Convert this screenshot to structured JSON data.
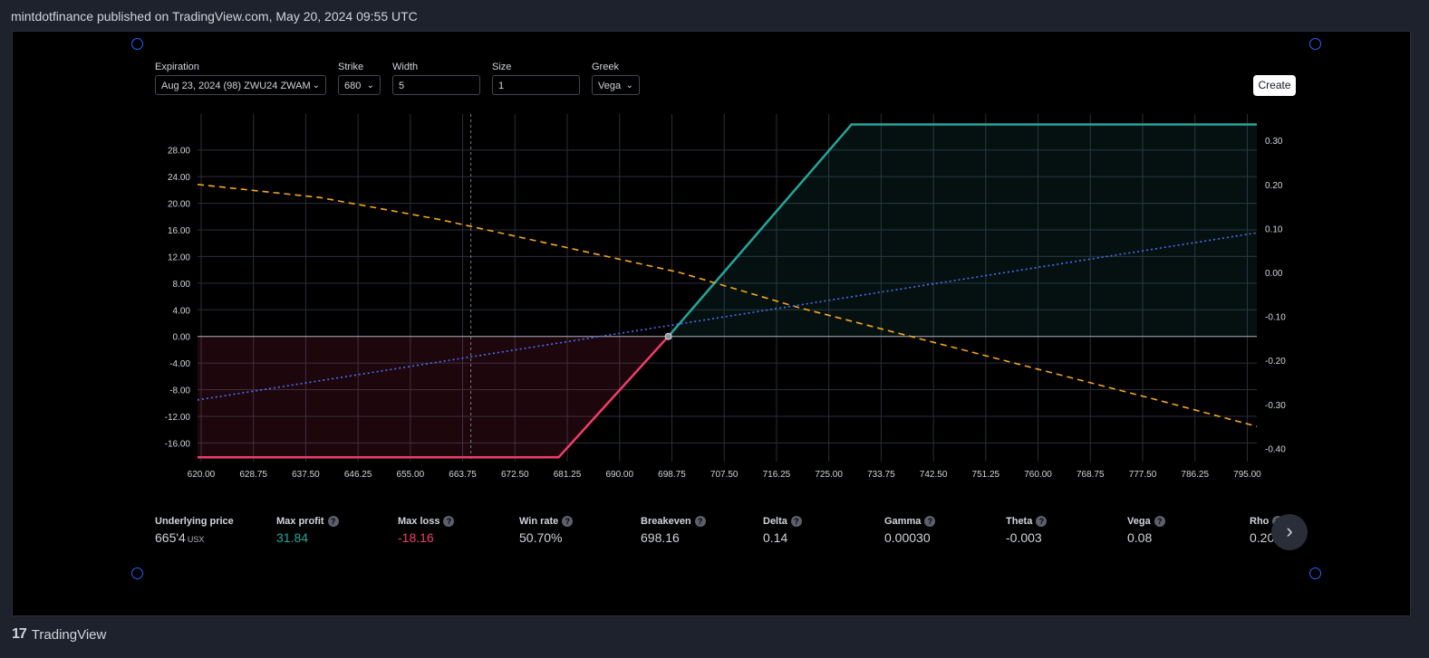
{
  "header": {
    "published": "mintdotfinance published on TradingView.com, May 20, 2024 09:55 UTC"
  },
  "controls": {
    "expiration": {
      "label": "Expiration",
      "value": "Aug 23, 2024 (98) ZWU24 ZWAM"
    },
    "strike": {
      "label": "Strike",
      "value": "680"
    },
    "width": {
      "label": "Width",
      "value": "5"
    },
    "size": {
      "label": "Size",
      "value": "1"
    },
    "greek": {
      "label": "Greek",
      "value": "Vega"
    },
    "create_label": "Create"
  },
  "chart_data": {
    "type": "line",
    "x_ticks": [
      "620.00",
      "628.75",
      "637.50",
      "646.25",
      "655.00",
      "663.75",
      "672.50",
      "681.25",
      "690.00",
      "698.75",
      "707.50",
      "716.25",
      "725.00",
      "733.75",
      "742.50",
      "751.25",
      "760.00",
      "768.75",
      "777.50",
      "786.25",
      "795.00"
    ],
    "y_left_ticks": [
      "28.00",
      "24.00",
      "20.00",
      "16.00",
      "12.00",
      "8.00",
      "4.00",
      "0.00",
      "-4.00",
      "-8.00",
      "-12.00",
      "-16.00"
    ],
    "y_right_ticks": [
      "0.30",
      "0.20",
      "0.10",
      "0.00",
      "-0.10",
      "-0.20",
      "-0.30",
      "-0.40"
    ],
    "xlim": [
      619.4,
      796.6
    ],
    "ylim_left": [
      -18.8,
      33.4
    ],
    "ylim_right": [
      -0.43,
      0.36
    ],
    "current_price": 665.125,
    "breakeven": 698.16,
    "series": [
      {
        "role": "pnl",
        "color_profit": "#26a69a",
        "color_loss": "#f23c6b",
        "x": [
          619.4,
          679.8,
          698.16,
          728.8,
          796.6
        ],
        "y": [
          -18.16,
          -18.16,
          0,
          31.84,
          31.84
        ]
      },
      {
        "role": "theta",
        "color": "#f5a623",
        "x": [
          619.4,
          640,
          660,
          680,
          700,
          720,
          740,
          760,
          780,
          796.6
        ],
        "y": [
          0.2,
          0.17,
          0.12,
          0.06,
          0.0,
          -0.08,
          -0.15,
          -0.22,
          -0.29,
          -0.35
        ]
      },
      {
        "role": "greek",
        "color": "#4c6ef5",
        "x": [
          619.4,
          796.6
        ],
        "y": [
          -0.29,
          0.09
        ]
      }
    ]
  },
  "stats": [
    {
      "label": "Underlying price",
      "value": "665'4",
      "unit": "USX",
      "color": "#d1d4dc",
      "help": false
    },
    {
      "label": "Max profit",
      "value": "31.84",
      "color": "#26a69a",
      "help": true
    },
    {
      "label": "Max loss",
      "value": "-18.16",
      "color": "#f23c6b",
      "help": true
    },
    {
      "label": "Win rate",
      "value": "50.70%",
      "color": "#d1d4dc",
      "help": true
    },
    {
      "label": "Breakeven",
      "value": "698.16",
      "color": "#d1d4dc",
      "help": true
    },
    {
      "label": "Delta",
      "value": "0.14",
      "color": "#d1d4dc",
      "help": true
    },
    {
      "label": "Gamma",
      "value": "0.00030",
      "color": "#d1d4dc",
      "help": true
    },
    {
      "label": "Theta",
      "value": "-0.003",
      "color": "#d1d4dc",
      "help": true
    },
    {
      "label": "Vega",
      "value": "0.08",
      "color": "#d1d4dc",
      "help": true
    },
    {
      "label": "Rho",
      "value": "0.20",
      "color": "#d1d4dc",
      "help": true
    }
  ],
  "icons": {
    "next": "chevron-right-icon",
    "help": "help-circle-icon",
    "brand_logo": "tradingview-logo-icon"
  },
  "footer": {
    "brand": "TradingView",
    "logo_text": "17"
  }
}
